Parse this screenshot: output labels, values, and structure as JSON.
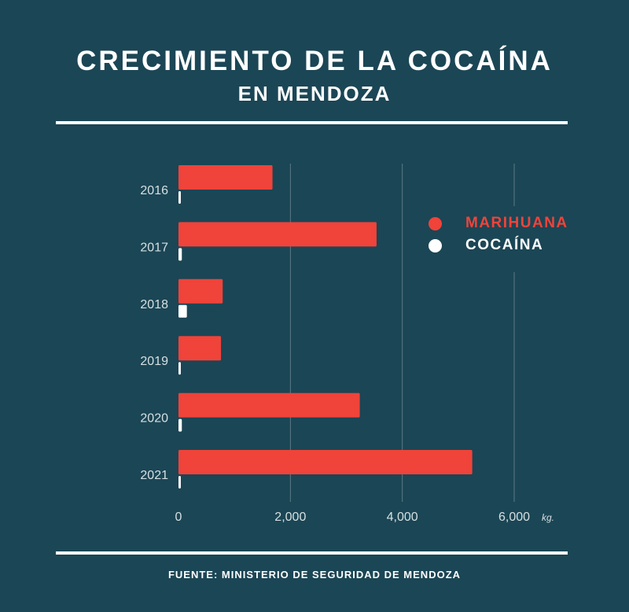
{
  "header": {
    "title": "CRECIMIENTO DE LA COCAÍNA",
    "subtitle": "EN MENDOZA"
  },
  "footer": {
    "source": "FUENTE: MINISTERIO DE SEGURIDAD DE MENDOZA"
  },
  "colors": {
    "background": "#1b4655",
    "marihuana": "#f0433a",
    "cocaina": "#ffffff",
    "grid": "#5b7b86",
    "tick_text": "#d6e0e3"
  },
  "legend": {
    "items": [
      {
        "label": "MARIHUANA",
        "color": "#f0433a"
      },
      {
        "label": "COCAÍNA",
        "color": "#ffffff"
      }
    ]
  },
  "chart_data": {
    "type": "bar",
    "orientation": "horizontal",
    "title": "CRECIMIENTO DE LA COCAÍNA EN MENDOZA",
    "categories": [
      "2016",
      "2017",
      "2018",
      "2019",
      "2020",
      "2021"
    ],
    "series": [
      {
        "name": "MARIHUANA",
        "values": [
          1680,
          3540,
          790,
          760,
          3240,
          5250
        ]
      },
      {
        "name": "COCAÍNA",
        "values": [
          20,
          60,
          150,
          40,
          60,
          30
        ]
      }
    ],
    "xlim": [
      0,
      6000
    ],
    "xticks": [
      0,
      2000,
      4000,
      6000
    ],
    "xtick_labels": [
      "0",
      "2,000",
      "4,000",
      "6,000"
    ],
    "xunit": "kg.",
    "grid": true,
    "legend_position": "right"
  }
}
